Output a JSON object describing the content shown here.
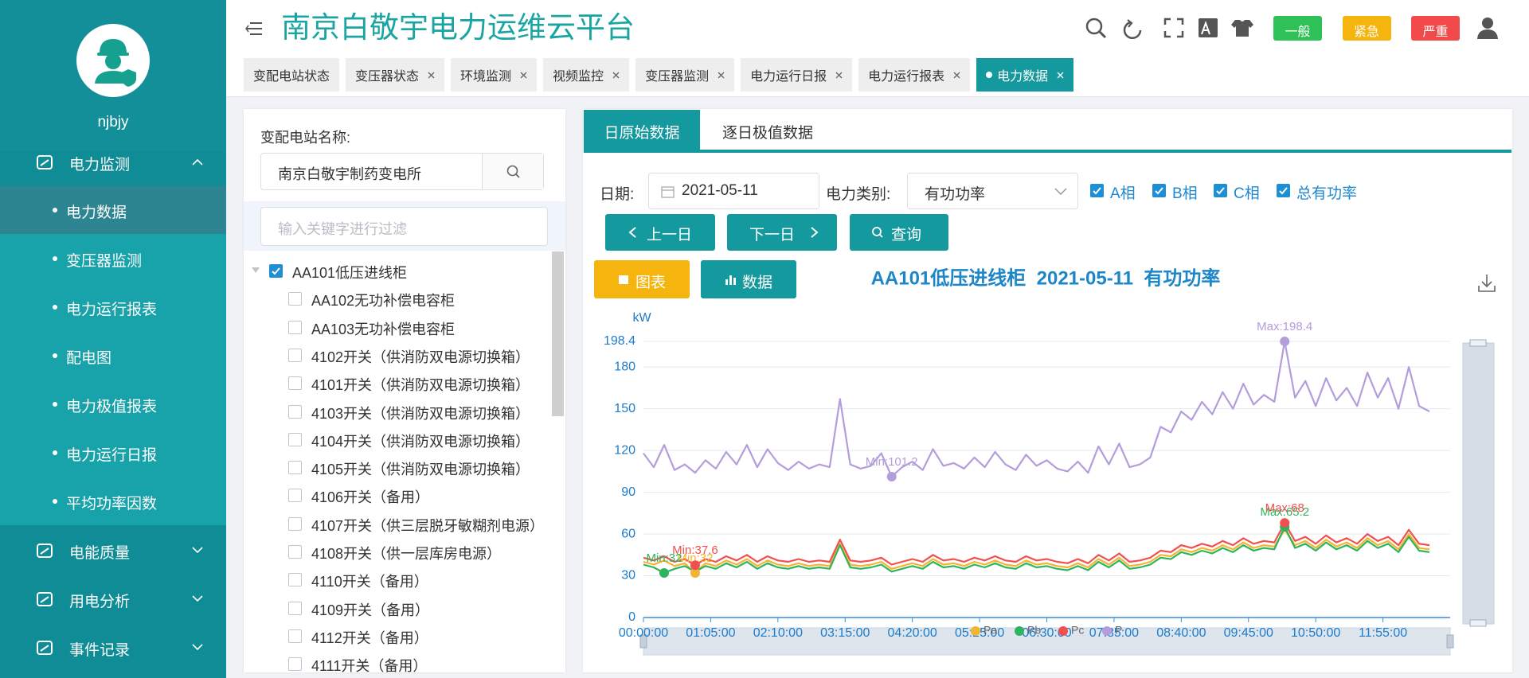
{
  "sidebar": {
    "user": "njbjy",
    "menu": [
      {
        "label": "电力监测",
        "expanded": true,
        "children": [
          {
            "label": "电力数据",
            "selected": true
          },
          {
            "label": "变压器监测"
          },
          {
            "label": "电力运行报表"
          },
          {
            "label": "配电图"
          },
          {
            "label": "电力极值报表"
          },
          {
            "label": "电力运行日报"
          },
          {
            "label": "平均功率因数"
          }
        ]
      },
      {
        "label": "电能质量"
      },
      {
        "label": "用电分析"
      },
      {
        "label": "事件记录"
      }
    ]
  },
  "header": {
    "title": "南京白敬宇电力运维云平台",
    "levels": [
      {
        "label": "一般",
        "color": "#2ec157"
      },
      {
        "label": "紧急",
        "color": "#f6b40e"
      },
      {
        "label": "严重",
        "color": "#f24a4a"
      }
    ]
  },
  "tabs": {
    "items": [
      "变配电站状态",
      "变压器状态",
      "环境监测",
      "视频监控",
      "变压器监测",
      "电力运行日报",
      "电力运行报表",
      "电力数据"
    ],
    "active": 7
  },
  "station_panel": {
    "label": "变配电站名称:",
    "value": "南京白敬宇制药变电所",
    "filter_placeholder": "输入关键字进行过滤",
    "tree": [
      {
        "label": "AA101低压进线柜",
        "checked": true,
        "parent": true
      },
      {
        "label": "AA102无功补偿电容柜"
      },
      {
        "label": "AA103无功补偿电容柜"
      },
      {
        "label": "4102开关（供消防双电源切换箱）"
      },
      {
        "label": "4101开关（供消防双电源切换箱）"
      },
      {
        "label": "4103开关（供消防双电源切换箱）"
      },
      {
        "label": "4104开关（供消防双电源切换箱）"
      },
      {
        "label": "4105开关（供消防双电源切换箱）"
      },
      {
        "label": "4106开关（备用）"
      },
      {
        "label": "4107开关（供三层脱牙敏糊剂电源）"
      },
      {
        "label": "4108开关（供一层库房电源）"
      },
      {
        "label": "4110开关（备用）"
      },
      {
        "label": "4109开关（备用）"
      },
      {
        "label": "4112开关（备用）"
      },
      {
        "label": "4111开关（备用）"
      }
    ]
  },
  "data_panel": {
    "tabs": [
      "日原始数据",
      "逐日极值数据"
    ],
    "date_label": "日期:",
    "date": "2021-05-11",
    "type_label": "电力类别:",
    "type": "有功功率",
    "checks": [
      {
        "label": "A相",
        "checked": true
      },
      {
        "label": "B相",
        "checked": true
      },
      {
        "label": "C相",
        "checked": true
      },
      {
        "label": "总有功率",
        "checked": true
      }
    ],
    "buttons": [
      "上一日",
      "下一日",
      "查询"
    ],
    "views": [
      "图表",
      "数据"
    ]
  },
  "chart_data": {
    "type": "line",
    "title": "AA101低压进线柜  2021-05-11  有功功率",
    "y_label": "kW",
    "x": [
      0,
      10,
      20,
      30,
      40,
      50,
      60,
      70,
      80,
      90,
      100,
      110,
      120,
      130,
      140,
      150,
      160,
      170,
      180,
      190,
      200,
      210,
      220,
      230,
      240,
      250,
      260,
      270,
      280,
      290,
      300,
      310,
      320,
      330,
      340,
      350,
      360,
      370,
      380,
      390,
      400,
      410,
      420,
      430,
      440,
      450,
      460,
      470,
      480,
      490,
      500,
      510,
      520,
      530,
      540,
      550,
      560,
      570,
      580,
      590,
      600,
      610,
      620,
      630,
      640,
      650,
      660,
      670,
      680,
      690,
      700,
      710,
      720,
      730,
      740,
      750,
      760
    ],
    "xlim": [
      0,
      780
    ],
    "xticks": [
      {
        "value": 0,
        "label": "00:00:00"
      },
      {
        "value": 65,
        "label": "01:05:00"
      },
      {
        "value": 130,
        "label": "02:10:00"
      },
      {
        "value": 195,
        "label": "03:15:00"
      },
      {
        "value": 260,
        "label": "04:20:00"
      },
      {
        "value": 325,
        "label": "05:25:00"
      },
      {
        "value": 390,
        "label": "06:30:00"
      },
      {
        "value": 455,
        "label": "07:35:00"
      },
      {
        "value": 520,
        "label": "08:40:00"
      },
      {
        "value": 585,
        "label": "09:45:00"
      },
      {
        "value": 650,
        "label": "10:50:00"
      },
      {
        "value": 715,
        "label": "11:55:00"
      }
    ],
    "ylim": [
      0,
      198.4
    ],
    "yticks": [
      0,
      30,
      60,
      90,
      120,
      150,
      180,
      198.4
    ],
    "grid": true,
    "legend": "bottom",
    "series": [
      {
        "name": "Pa",
        "color": "#f5b332",
        "min_label": "Min:32",
        "values": [
          40,
          38,
          41,
          37,
          39,
          32,
          39,
          37,
          41,
          38,
          42,
          37,
          41,
          38,
          37,
          39,
          37,
          38,
          37,
          53,
          38,
          37,
          38,
          40,
          35,
          37,
          39,
          37,
          42,
          38,
          39,
          37,
          40,
          38,
          41,
          38,
          37,
          41,
          38,
          39,
          37,
          36,
          39,
          36,
          42,
          38,
          43,
          37,
          38,
          40,
          45,
          44,
          49,
          47,
          50,
          48,
          52,
          49,
          54,
          50,
          52,
          51,
          63,
          52,
          55,
          50,
          56,
          51,
          54,
          50,
          57,
          52,
          55,
          49,
          60,
          50,
          49
        ]
      },
      {
        "name": "Pb",
        "color": "#2db55d",
        "min_label": "Min:32",
        "max_label": "Max:65.2",
        "values": [
          38,
          36,
          32,
          35,
          37,
          33,
          37,
          35,
          39,
          36,
          40,
          35,
          39,
          36,
          35,
          37,
          35,
          36,
          35,
          52,
          36,
          35,
          36,
          38,
          33,
          35,
          37,
          35,
          40,
          36,
          37,
          35,
          38,
          36,
          39,
          36,
          35,
          39,
          36,
          37,
          35,
          34,
          37,
          34,
          40,
          36,
          41,
          35,
          36,
          38,
          43,
          42,
          47,
          45,
          48,
          46,
          50,
          47,
          52,
          48,
          50,
          49,
          65.2,
          50,
          53,
          48,
          54,
          49,
          52,
          48,
          55,
          50,
          53,
          47,
          58,
          48,
          47
        ]
      },
      {
        "name": "Pc",
        "color": "#f0504f",
        "min_label": "Min:37.6",
        "max_label": "Max:68",
        "values": [
          43,
          41,
          44,
          40,
          42,
          37.6,
          42,
          40,
          44,
          41,
          45,
          40,
          44,
          41,
          40,
          42,
          40,
          41,
          40,
          56,
          41,
          40,
          41,
          43,
          38,
          40,
          42,
          40,
          45,
          41,
          42,
          40,
          43,
          41,
          44,
          41,
          40,
          44,
          41,
          42,
          40,
          39,
          42,
          39,
          45,
          41,
          46,
          40,
          41,
          43,
          48,
          47,
          52,
          50,
          53,
          51,
          55,
          52,
          57,
          53,
          55,
          54,
          68,
          55,
          58,
          53,
          59,
          54,
          57,
          53,
          60,
          55,
          58,
          52,
          63,
          53,
          52
        ]
      },
      {
        "name": "P",
        "color": "#b39ddb",
        "min_label": "Min:101.2",
        "max_label": "Max:198.4",
        "values": [
          118,
          108,
          124,
          106,
          110,
          104,
          113,
          107,
          119,
          110,
          124,
          108,
          121,
          111,
          106,
          112,
          107,
          110,
          108,
          157,
          110,
          107,
          109,
          118,
          101.2,
          108,
          112,
          106,
          121,
          109,
          111,
          107,
          115,
          108,
          119,
          110,
          106,
          117,
          109,
          113,
          107,
          105,
          112,
          104,
          123,
          110,
          125,
          108,
          110,
          115,
          137,
          133,
          148,
          142,
          155,
          146,
          162,
          150,
          168,
          153,
          160,
          155,
          198.4,
          158,
          170,
          152,
          172,
          156,
          165,
          152,
          176,
          158,
          172,
          150,
          180,
          152,
          148
        ]
      }
    ]
  }
}
